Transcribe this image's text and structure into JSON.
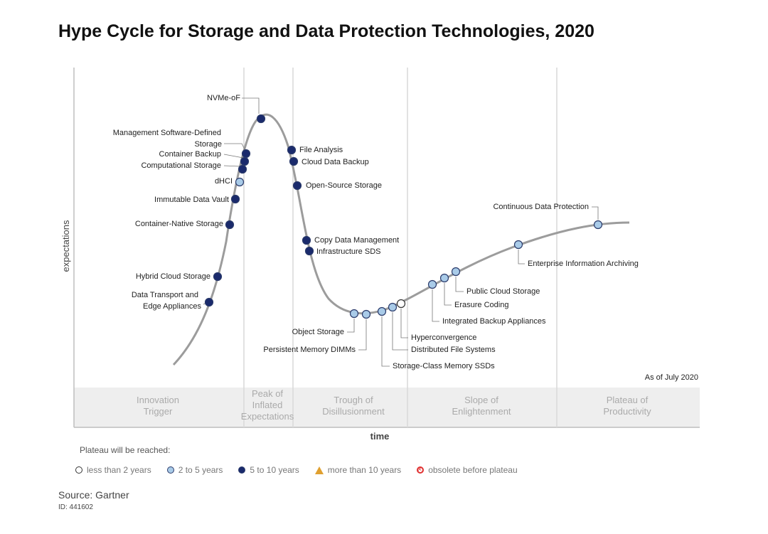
{
  "chart_data": {
    "type": "hype-cycle",
    "title": "Hype Cycle for Storage and Data Protection Technologies, 2020",
    "xlabel": "time",
    "ylabel": "expectations",
    "as_of": "As of July 2020",
    "phases": [
      {
        "lines": [
          "Innovation",
          "Trigger"
        ]
      },
      {
        "lines": [
          "Peak of",
          "Inflated",
          "Expectations"
        ]
      },
      {
        "lines": [
          "Trough of",
          "Disillusionment"
        ]
      },
      {
        "lines": [
          "Slope of",
          "Enlightenment"
        ]
      },
      {
        "lines": [
          "Plateau of",
          "Productivity"
        ]
      }
    ],
    "legend_title": "Plateau will be reached:",
    "legend": [
      {
        "key": "lt2",
        "label": "less than 2 years"
      },
      {
        "key": "2to5",
        "label": "2 to 5 years"
      },
      {
        "key": "5to10",
        "label": "5 to 10 years"
      },
      {
        "key": "gt10",
        "label": "more than 10 years"
      },
      {
        "key": "obsolete",
        "label": "obsolete before plateau"
      }
    ],
    "colors": {
      "lt2": "#ffffff",
      "2to5": "#a9cbe8",
      "5to10": "#1a2a6c",
      "gt10": "#e0a030",
      "obsolete": "#e03030",
      "curve": "#999999"
    },
    "technologies": [
      {
        "name": "NVMe-oF",
        "category": "5to10"
      },
      {
        "name": "Management Software-Defined Storage",
        "category": "5to10"
      },
      {
        "name": "Container Backup",
        "category": "5to10"
      },
      {
        "name": "Computational Storage",
        "category": "5to10"
      },
      {
        "name": "dHCI",
        "category": "2to5"
      },
      {
        "name": "Immutable Data Vault",
        "category": "5to10"
      },
      {
        "name": "Container-Native Storage",
        "category": "5to10"
      },
      {
        "name": "Hybrid Cloud Storage",
        "category": "5to10"
      },
      {
        "name": "Data Transport and Edge Appliances",
        "category": "5to10"
      },
      {
        "name": "File Analysis",
        "category": "5to10"
      },
      {
        "name": "Cloud Data Backup",
        "category": "5to10"
      },
      {
        "name": "Open-Source Storage",
        "category": "5to10"
      },
      {
        "name": "Copy Data Management",
        "category": "5to10"
      },
      {
        "name": "Infrastructure SDS",
        "category": "5to10"
      },
      {
        "name": "Object Storage",
        "category": "2to5"
      },
      {
        "name": "Persistent Memory DIMMs",
        "category": "2to5"
      },
      {
        "name": "Storage-Class Memory SSDs",
        "category": "2to5"
      },
      {
        "name": "Distributed File Systems",
        "category": "2to5"
      },
      {
        "name": "Hyperconvergence",
        "category": "lt2"
      },
      {
        "name": "Integrated Backup Appliances",
        "category": "2to5"
      },
      {
        "name": "Erasure Coding",
        "category": "2to5"
      },
      {
        "name": "Public Cloud Storage",
        "category": "2to5"
      },
      {
        "name": "Enterprise Information Archiving",
        "category": "2to5"
      },
      {
        "name": "Continuous Data Protection",
        "category": "2to5"
      }
    ]
  },
  "source": "Source: Gartner",
  "doc_id": "ID: 441602"
}
